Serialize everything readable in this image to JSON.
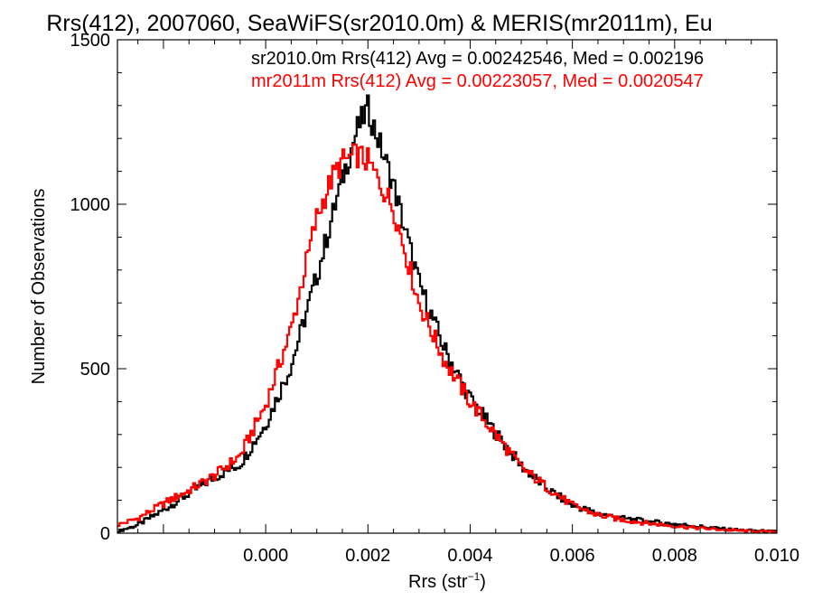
{
  "chart_data": {
    "type": "line",
    "title": "Rrs(412), 2007060, SeaWiFS(sr2010.0m) & MERIS(mr2011m), Eu",
    "xlabel": "Rrs (str",
    "xlabel_superscript": "−1",
    "xlabel_suffix": ")",
    "ylabel": "Number of Observations",
    "xlim": [
      -0.0029,
      0.01
    ],
    "ylim": [
      0,
      1500
    ],
    "x_ticks": [
      {
        "value": 0.0,
        "label": "0.000"
      },
      {
        "value": 0.002,
        "label": "0.002"
      },
      {
        "value": 0.004,
        "label": "0.004"
      },
      {
        "value": 0.006,
        "label": "0.006"
      },
      {
        "value": 0.008,
        "label": "0.008"
      },
      {
        "value": 0.01,
        "label": "0.010"
      }
    ],
    "y_ticks": [
      {
        "value": 0,
        "label": "0"
      },
      {
        "value": 500,
        "label": "500"
      },
      {
        "value": 1000,
        "label": "1000"
      },
      {
        "value": 1500,
        "label": "1500"
      }
    ],
    "grid": false,
    "series": [
      {
        "name": "sr2010.0m",
        "label": "sr2010.0m Rrs(412) Avg = 0.00242546, Med = 0.002196",
        "color": "#000000",
        "x": [
          -0.0029,
          -0.0025,
          -0.002,
          -0.0015,
          -0.001,
          -0.0005,
          0.0,
          0.0005,
          0.001,
          0.0015,
          0.0018,
          0.002,
          0.0025,
          0.003,
          0.0035,
          0.004,
          0.0045,
          0.005,
          0.0055,
          0.006,
          0.0065,
          0.007,
          0.0075,
          0.008,
          0.0085,
          0.009,
          0.0095,
          0.01
        ],
        "y": [
          5,
          25,
          70,
          120,
          170,
          210,
          330,
          510,
          780,
          1080,
          1230,
          1290,
          1060,
          760,
          560,
          410,
          305,
          205,
          135,
          85,
          60,
          45,
          35,
          28,
          20,
          12,
          8,
          5
        ]
      },
      {
        "name": "mr2011m",
        "label": "mr2011m Rrs(412) Avg = 0.00223057, Med = 0.0020547",
        "color": "#ff0000",
        "x": [
          -0.0029,
          -0.0025,
          -0.002,
          -0.0015,
          -0.001,
          -0.0005,
          0.0,
          0.0005,
          0.001,
          0.0013,
          0.0015,
          0.0018,
          0.002,
          0.0025,
          0.003,
          0.0035,
          0.004,
          0.0045,
          0.005,
          0.0055,
          0.006,
          0.0065,
          0.007,
          0.0075,
          0.008,
          0.0085,
          0.009,
          0.0095,
          0.01
        ],
        "y": [
          25,
          45,
          90,
          130,
          175,
          235,
          390,
          620,
          960,
          1080,
          1130,
          1150,
          1130,
          990,
          700,
          525,
          400,
          300,
          200,
          140,
          85,
          55,
          40,
          30,
          22,
          15,
          10,
          6,
          4
        ]
      }
    ]
  }
}
